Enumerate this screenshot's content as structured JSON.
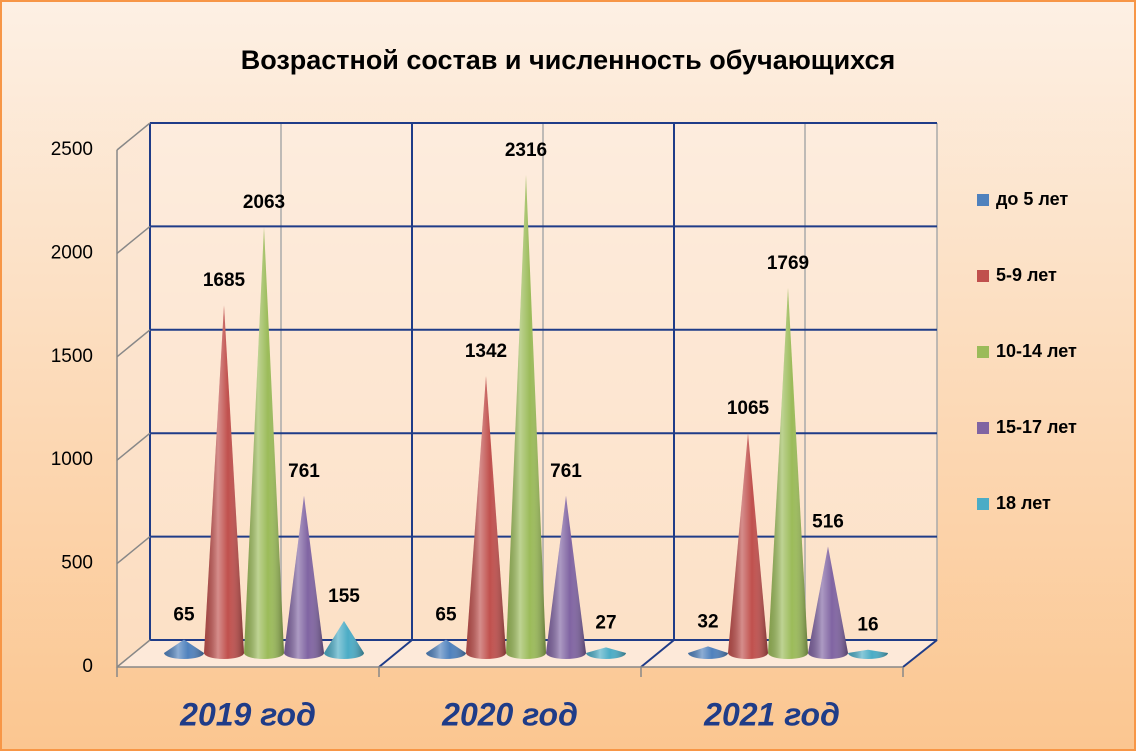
{
  "chart_data": {
    "type": "bar",
    "title": "Возрастной состав и численность обучающихся",
    "categories": [
      "2019 год",
      "2020 год",
      "2021 год"
    ],
    "series": [
      {
        "name": "до 5 лет",
        "color": "#4f81bd",
        "values": [
          65,
          65,
          32
        ]
      },
      {
        "name": "5-9 лет",
        "color": "#c0504d",
        "values": [
          1685,
          1342,
          1065
        ]
      },
      {
        "name": "10-14 лет",
        "color": "#9bbb59",
        "values": [
          2063,
          2316,
          1769
        ]
      },
      {
        "name": "15-17 лет",
        "color": "#8064a2",
        "values": [
          761,
          761,
          516
        ]
      },
      {
        "name": "18 лет",
        "color": "#4bacc6",
        "values": [
          155,
          27,
          16
        ]
      }
    ],
    "ylim": [
      0,
      2500
    ],
    "yticks": [
      0,
      500,
      1000,
      1500,
      2000,
      2500
    ],
    "grid": true,
    "legend": "right"
  }
}
